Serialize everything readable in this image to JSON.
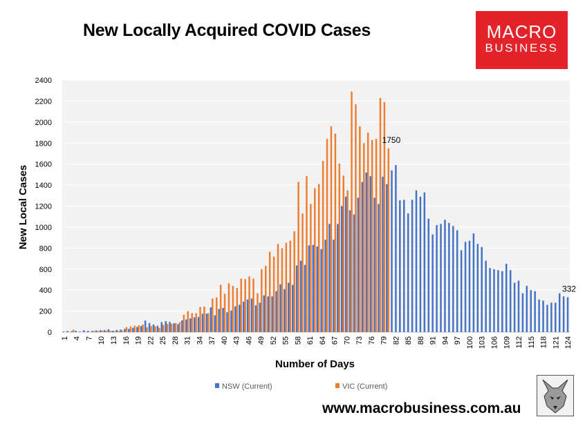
{
  "chart_data": {
    "type": "bar",
    "title": "New Locally Acquired COVID Cases",
    "xlabel": "Number of Days",
    "ylabel": "New Local Cases",
    "ylim": [
      0,
      2400
    ],
    "yticks": [
      0,
      200,
      400,
      600,
      800,
      1000,
      1200,
      1400,
      1600,
      1800,
      2000,
      2200,
      2400
    ],
    "xtick_labels": [
      "1",
      "4",
      "7",
      "10",
      "13",
      "16",
      "19",
      "22",
      "25",
      "28",
      "31",
      "34",
      "37",
      "40",
      "43",
      "46",
      "49",
      "52",
      "55",
      "58",
      "61",
      "64",
      "67",
      "70",
      "73",
      "76",
      "79",
      "82",
      "85",
      "88",
      "91",
      "94",
      "97",
      "100",
      "103",
      "106",
      "109",
      "112",
      "115",
      "118",
      "121",
      "124"
    ],
    "legend_position": "bottom",
    "annotations": [
      {
        "text": "1750",
        "series": "VIC (Current)",
        "day": 80
      },
      {
        "text": "332",
        "series": "NSW (Current)",
        "day": 124
      }
    ],
    "series": [
      {
        "name": "NSW (Current)",
        "color": "#4472c4",
        "values": [
          6,
          11,
          8,
          13,
          5,
          17,
          12,
          11,
          16,
          18,
          19,
          26,
          13,
          20,
          25,
          31,
          31,
          41,
          48,
          58,
          110,
          86,
          72,
          60,
          95,
          104,
          97,
          85,
          76,
          112,
          120,
          130,
          140,
          145,
          175,
          176,
          235,
          160,
          220,
          230,
          190,
          205,
          245,
          260,
          290,
          310,
          320,
          255,
          280,
          350,
          340,
          340,
          390,
          455,
          410,
          470,
          450,
          635,
          680,
          640,
          825,
          830,
          815,
          790,
          880,
          1030,
          880,
          1030,
          1200,
          1290,
          1160,
          1120,
          1280,
          1430,
          1520,
          1485,
          1280,
          1220,
          1480,
          1410,
          1540,
          1590,
          1255,
          1260,
          1130,
          1260,
          1350,
          1290,
          1330,
          1080,
          930,
          1020,
          1030,
          1070,
          1040,
          1010,
          970,
          780,
          860,
          870,
          940,
          840,
          810,
          680,
          610,
          600,
          590,
          580,
          650,
          590,
          470,
          490,
          370,
          440,
          400,
          390,
          310,
          300,
          260,
          280,
          280,
          370,
          340,
          332
        ]
      },
      {
        "name": "VIC (Current)",
        "color": "#ed7d31",
        "values": [
          0,
          0,
          23,
          0,
          0,
          0,
          0,
          10,
          10,
          15,
          14,
          11,
          9,
          11,
          13,
          48,
          54,
          62,
          65,
          72,
          46,
          58,
          56,
          40,
          68,
          78,
          79,
          86,
          95,
          165,
          200,
          180,
          179,
          240,
          243,
          180,
          320,
          330,
          450,
          365,
          465,
          440,
          420,
          510,
          505,
          530,
          510,
          370,
          600,
          630,
          765,
          720,
          840,
          800,
          850,
          870,
          960,
          1430,
          1130,
          1485,
          1220,
          1370,
          1410,
          1630,
          1840,
          1960,
          1890,
          1605,
          1490,
          1350,
          2290,
          2170,
          1960,
          1800,
          1900,
          1830,
          1840,
          2230,
          2190,
          1750
        ]
      }
    ]
  },
  "logo": {
    "line1": "MACRO",
    "line2": "BUSINESS"
  },
  "footer": {
    "url": "www.macrobusiness.com.au"
  }
}
